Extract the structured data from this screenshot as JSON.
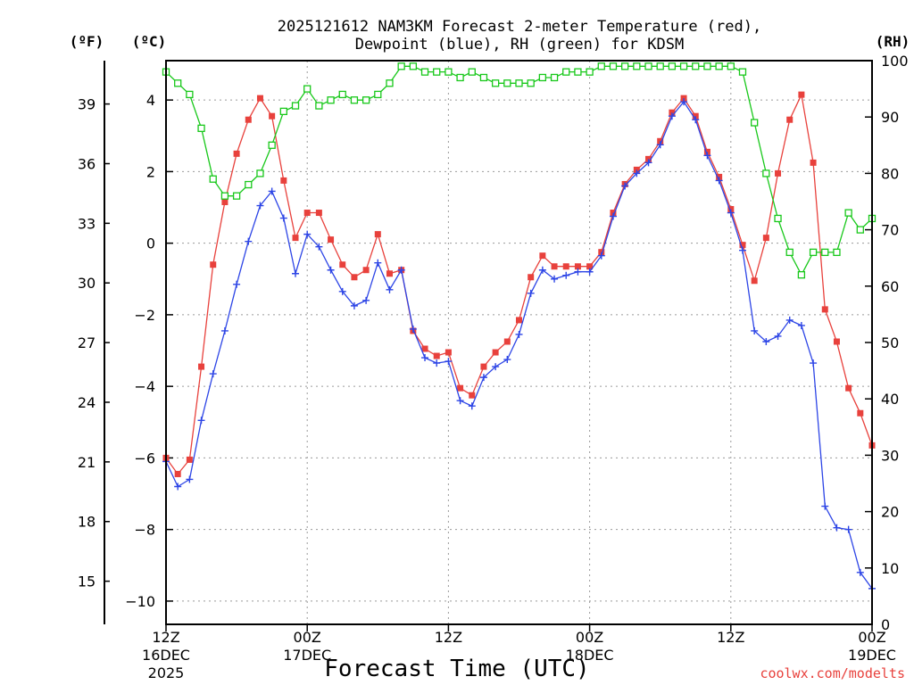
{
  "chart_data": {
    "type": "line",
    "title_lines": [
      "2025121612 NAM3KM Forecast 2-meter Temperature (red),",
      "Dewpoint (blue), RH (green) for KDSM"
    ],
    "left_unit_label": "(ºF)",
    "inner_unit_label": "(ºC)",
    "right_unit_label": "(RH)",
    "xlabel": "Forecast Time (UTC)",
    "credit": "coolwx.com/modelts",
    "x_range_hours": [
      0,
      60
    ],
    "celsius_range": [
      -10.65,
      5.1
    ],
    "rh_range": [
      0,
      100
    ],
    "celsius_ticks": [
      "4",
      "2",
      "0",
      "−2",
      "−4",
      "−6",
      "−8",
      "−10"
    ],
    "fahrenheit_ticks": [
      "39",
      "36",
      "33",
      "30",
      "27",
      "24",
      "21",
      "18",
      "15"
    ],
    "rh_ticks": [
      "100",
      "90",
      "80",
      "70",
      "60",
      "50",
      "40",
      "30",
      "20",
      "10",
      "0"
    ],
    "x_ticks": [
      {
        "hour": 0,
        "time": "12Z",
        "date": "16DEC",
        "year": "2025"
      },
      {
        "hour": 12,
        "time": "00Z",
        "date": "17DEC",
        "year": ""
      },
      {
        "hour": 24,
        "time": "12Z",
        "date": "",
        "year": ""
      },
      {
        "hour": 36,
        "time": "00Z",
        "date": "18DEC",
        "year": ""
      },
      {
        "hour": 48,
        "time": "12Z",
        "date": "",
        "year": ""
      },
      {
        "hour": 60,
        "time": "00Z",
        "date": "19DEC",
        "year": ""
      }
    ],
    "series": [
      {
        "name": "Temperature (°C)",
        "color": "#e8413c",
        "marker": "filled-square",
        "axis": "celsius",
        "values": [
          -6.0,
          -6.45,
          -6.05,
          -3.45,
          -0.6,
          1.15,
          2.5,
          3.45,
          4.05,
          3.55,
          1.75,
          0.15,
          0.85,
          0.85,
          0.1,
          -0.6,
          -0.95,
          -0.75,
          0.25,
          -0.85,
          -0.75,
          -2.45,
          -2.95,
          -3.15,
          -3.05,
          -4.05,
          -4.25,
          -3.45,
          -3.05,
          -2.75,
          -2.15,
          -0.95,
          -0.35,
          -0.65,
          -0.65,
          -0.65,
          -0.65,
          -0.25,
          0.85,
          1.65,
          2.05,
          2.35,
          2.85,
          3.65,
          4.05,
          3.55,
          2.55,
          1.85,
          0.95,
          -0.05,
          -1.05,
          0.15,
          1.95,
          3.45,
          4.15,
          2.25,
          -1.85,
          -2.75,
          -4.05,
          -4.75,
          -5.65
        ]
      },
      {
        "name": "Dewpoint (°C)",
        "color": "#2d45e6",
        "marker": "plus",
        "axis": "celsius",
        "values": [
          -6.1,
          -6.8,
          -6.6,
          -4.95,
          -3.65,
          -2.45,
          -1.15,
          0.05,
          1.05,
          1.45,
          0.7,
          -0.85,
          0.25,
          -0.1,
          -0.75,
          -1.35,
          -1.75,
          -1.6,
          -0.55,
          -1.3,
          -0.75,
          -2.4,
          -3.2,
          -3.35,
          -3.3,
          -4.4,
          -4.55,
          -3.75,
          -3.45,
          -3.25,
          -2.55,
          -1.4,
          -0.75,
          -1.0,
          -0.9,
          -0.8,
          -0.8,
          -0.35,
          0.75,
          1.6,
          1.95,
          2.25,
          2.75,
          3.55,
          3.95,
          3.45,
          2.45,
          1.75,
          0.85,
          -0.2,
          -2.45,
          -2.75,
          -2.6,
          -2.15,
          -2.3,
          -3.35,
          -7.35,
          -7.95,
          -8.0,
          -9.2,
          -9.65
        ]
      },
      {
        "name": "RH (%)",
        "color": "#18c81a",
        "marker": "open-square",
        "axis": "rh",
        "values": [
          98,
          96,
          94,
          88,
          79,
          76,
          76,
          78,
          80,
          85,
          91,
          92,
          95,
          92,
          93,
          94,
          93,
          93,
          94,
          96,
          99,
          99,
          98,
          98,
          98,
          97,
          98,
          97,
          96,
          96,
          96,
          96,
          97,
          97,
          98,
          98,
          98,
          99,
          99,
          99,
          99,
          99,
          99,
          99,
          99,
          99,
          99,
          99,
          99,
          98,
          89,
          80,
          72,
          66,
          62,
          66,
          66,
          66,
          73,
          70,
          72
        ]
      }
    ]
  }
}
